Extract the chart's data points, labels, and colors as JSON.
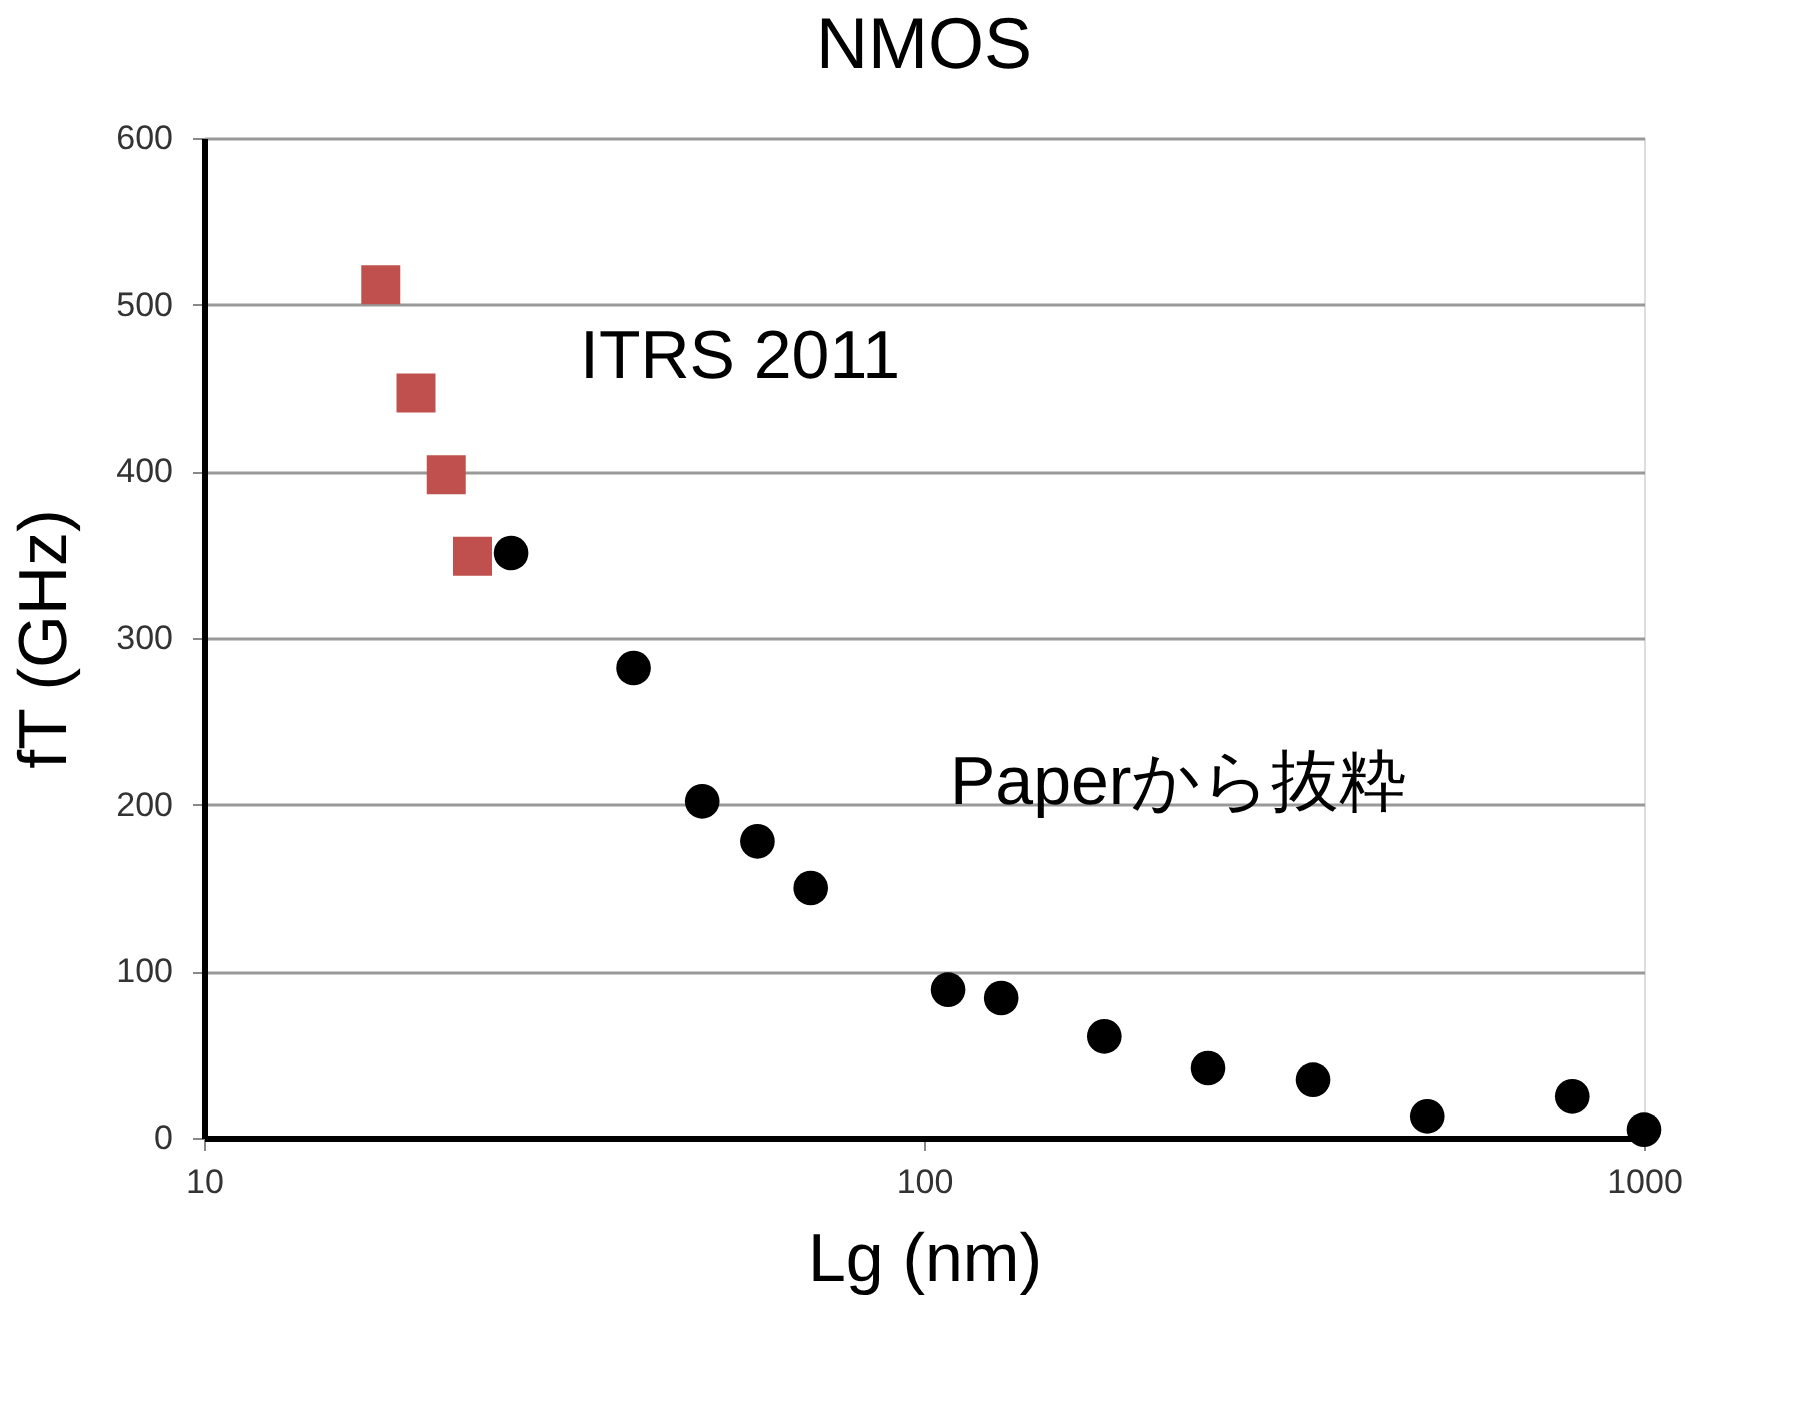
{
  "chart_data": {
    "type": "scatter",
    "title": "NMOS",
    "xlabel": "Lg (nm)",
    "ylabel": "fT (GHz)",
    "log": "x",
    "xlim": [
      10,
      1000
    ],
    "xticks": [
      10,
      100,
      1000
    ],
    "ylim": [
      0,
      600
    ],
    "yticks": [
      0,
      100,
      200,
      300,
      400,
      500,
      600
    ],
    "grid": "y",
    "legend": false,
    "series": [
      {
        "name": "ITRS 2011",
        "color": "#c0504d",
        "marker": "square",
        "x": [
          17.6,
          19.7,
          21.7,
          23.6
        ],
        "values": [
          512,
          447,
          398,
          349
        ]
      },
      {
        "name": "Paperから抜粋",
        "color": "#000000",
        "marker": "circle",
        "x": [
          26.7,
          39.5,
          49.2,
          58.7,
          69.6,
          108,
          128,
          178,
          248,
          347,
          500,
          795,
          1000
        ],
        "values": [
          351,
          282,
          202,
          178,
          150,
          89,
          84,
          61,
          42,
          35,
          13,
          25,
          5
        ]
      }
    ]
  }
}
